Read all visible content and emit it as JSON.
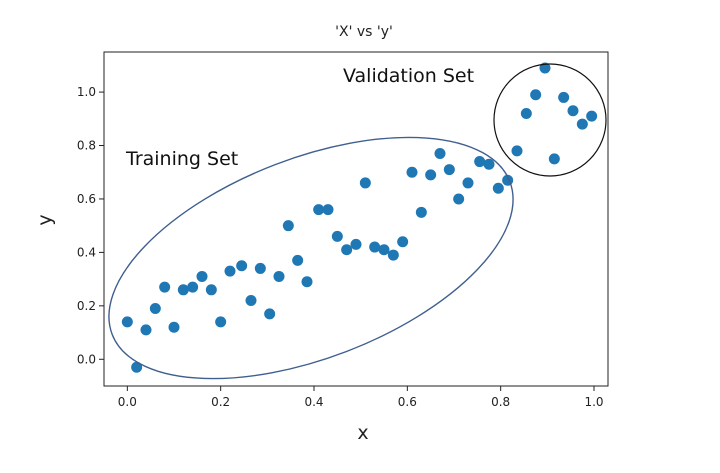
{
  "chart_data": {
    "type": "scatter",
    "title": "'X' vs 'y'",
    "xlabel": "x",
    "ylabel": "y",
    "xlim": [
      -0.05,
      1.03
    ],
    "ylim": [
      -0.1,
      1.15
    ],
    "xticks": [
      "0.0",
      "0.2",
      "0.4",
      "0.6",
      "0.8",
      "1.0"
    ],
    "xtick_values": [
      0.0,
      0.2,
      0.4,
      0.6,
      0.8,
      1.0
    ],
    "yticks": [
      "0.0",
      "0.2",
      "0.4",
      "0.6",
      "0.8",
      "1.0"
    ],
    "ytick_values": [
      0.0,
      0.2,
      0.4,
      0.6,
      0.8,
      1.0
    ],
    "grid": false,
    "point_color": "#1f77b4",
    "x": [
      0.0,
      0.02,
      0.04,
      0.06,
      0.08,
      0.1,
      0.12,
      0.14,
      0.16,
      0.18,
      0.2,
      0.22,
      0.245,
      0.265,
      0.285,
      0.305,
      0.325,
      0.345,
      0.365,
      0.385,
      0.41,
      0.43,
      0.45,
      0.47,
      0.49,
      0.51,
      0.53,
      0.55,
      0.57,
      0.59,
      0.61,
      0.63,
      0.65,
      0.67,
      0.69,
      0.71,
      0.73,
      0.755,
      0.775,
      0.795,
      0.815,
      0.835,
      0.855,
      0.875,
      0.895,
      0.915,
      0.935,
      0.955,
      0.975,
      0.995
    ],
    "y": [
      0.14,
      -0.03,
      0.11,
      0.19,
      0.27,
      0.12,
      0.26,
      0.27,
      0.31,
      0.26,
      0.14,
      0.33,
      0.35,
      0.22,
      0.34,
      0.17,
      0.31,
      0.5,
      0.37,
      0.29,
      0.56,
      0.56,
      0.46,
      0.41,
      0.43,
      0.66,
      0.42,
      0.41,
      0.39,
      0.44,
      0.7,
      0.55,
      0.69,
      0.77,
      0.71,
      0.6,
      0.66,
      0.74,
      0.73,
      0.64,
      0.67,
      0.78,
      0.92,
      0.99,
      1.09,
      0.75,
      0.98,
      0.93,
      0.88,
      0.91
    ],
    "annotations": [
      {
        "text": "Training Set",
        "shape": "ellipse",
        "color": "#3f5f8f"
      },
      {
        "text": "Validation Set",
        "shape": "circle",
        "color": "#111111"
      }
    ]
  }
}
